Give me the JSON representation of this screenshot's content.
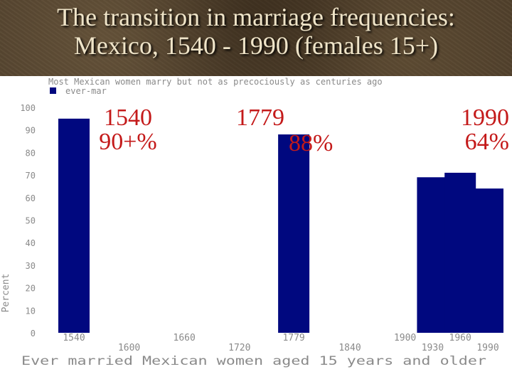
{
  "slide": {
    "title_line1": "The transition in marriage frequencies:",
    "title_line2": "Mexico,  1540 - 1990 (females 15+)"
  },
  "colors": {
    "bar": "#00087f",
    "annotation": "#c41a1a",
    "axis_text": "#8a8a8a"
  },
  "chart_data": {
    "type": "bar",
    "subtitle": "Most Mexican women marry but not as precociously as centuries ago",
    "legend": {
      "entries": [
        "ever-mar"
      ],
      "placement": "top-left"
    },
    "xlabel": "Ever married Mexican women aged 15 years and older",
    "ylabel": "Percent",
    "ylim": [
      0,
      100
    ],
    "yticks": [
      0,
      10,
      20,
      30,
      40,
      50,
      60,
      70,
      80,
      90,
      100
    ],
    "x_ticks": [
      "1540",
      "1600",
      "1660",
      "1720",
      "1779",
      "1840",
      "1900",
      "1930",
      "1960",
      "1990"
    ],
    "categories": [
      "1540",
      "1779",
      "1930",
      "1960",
      "1990"
    ],
    "series": [
      {
        "name": "ever-mar",
        "values": [
          95,
          88,
          69,
          71,
          64
        ]
      }
    ],
    "grid": false,
    "annotations": [
      {
        "line1": "1540",
        "line2": "90+%"
      },
      {
        "line1": "1779",
        "line2": "88%"
      },
      {
        "line1": "1990",
        "line2": "64%"
      }
    ]
  }
}
